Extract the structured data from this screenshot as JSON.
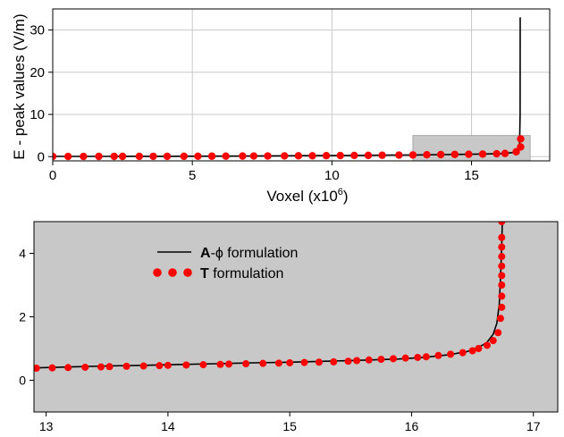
{
  "chart_data": [
    {
      "type": "line",
      "xlabel": "Voxel (x10",
      "xlabel_sup": "6",
      "xlabel_tail": ")",
      "ylabel": "E - peak values (V/m)",
      "xlim": [
        0,
        17.8
      ],
      "ylim": [
        -1,
        35
      ],
      "xticks": [
        "0",
        "5",
        "10",
        "15"
      ],
      "yticks": [
        "0",
        "10",
        "20",
        "30"
      ],
      "xtick_values": [
        0,
        5,
        10,
        15
      ],
      "ytick_values": [
        0,
        10,
        20,
        30
      ],
      "grid": true,
      "zoom_region": {
        "x": [
          12.9,
          17.1
        ],
        "y": [
          -1,
          5
        ]
      },
      "series": [
        {
          "name": "A-ϕ formulation",
          "style": "line",
          "color": "#000000",
          "x": [
            0,
            1,
            2,
            3,
            4,
            5,
            6,
            7,
            8,
            9,
            10,
            11,
            12,
            13,
            14,
            15,
            15.5,
            16,
            16.3,
            16.5,
            16.6,
            16.68,
            16.72,
            16.74,
            16.745
          ],
          "y": [
            0.05,
            0.05,
            0.06,
            0.07,
            0.08,
            0.1,
            0.12,
            0.15,
            0.18,
            0.22,
            0.26,
            0.3,
            0.35,
            0.4,
            0.48,
            0.56,
            0.62,
            0.72,
            0.85,
            1.0,
            1.2,
            1.6,
            3.0,
            10.0,
            33.0
          ]
        },
        {
          "name": "T formulation",
          "style": "markers",
          "color": "#ff0000",
          "x": [
            0,
            0.55,
            1.1,
            1.65,
            2.2,
            2.5,
            3.1,
            3.6,
            4.1,
            4.7,
            5.2,
            5.7,
            6.2,
            6.8,
            7.2,
            7.7,
            8.3,
            8.8,
            9.3,
            9.8,
            10.3,
            10.8,
            11.3,
            11.8,
            12.4,
            12.9,
            13.4,
            13.9,
            14.4,
            14.9,
            15.4,
            15.9,
            16.2,
            16.6,
            16.76,
            16.76
          ],
          "y": [
            0.05,
            0.05,
            0.05,
            0.06,
            0.06,
            0.06,
            0.07,
            0.08,
            0.08,
            0.09,
            0.1,
            0.11,
            0.12,
            0.14,
            0.15,
            0.16,
            0.18,
            0.2,
            0.21,
            0.23,
            0.26,
            0.28,
            0.3,
            0.33,
            0.36,
            0.4,
            0.44,
            0.48,
            0.53,
            0.56,
            0.6,
            0.68,
            0.75,
            1.15,
            2.3,
            4.2
          ]
        }
      ]
    },
    {
      "type": "line",
      "xlim": [
        12.9,
        17.2
      ],
      "ylim": [
        -1,
        5
      ],
      "xticks": [
        "13",
        "14",
        "15",
        "16",
        "17"
      ],
      "yticks": [
        "0",
        "2",
        "4"
      ],
      "xtick_values": [
        13,
        14,
        15,
        16,
        17
      ],
      "ytick_values": [
        0,
        2,
        4
      ],
      "background": "#c8c8c8",
      "legend_position": "top-left",
      "legend": [
        {
          "bold": "A",
          "text": "-ϕ formulation",
          "style": "line",
          "color": "#000000"
        },
        {
          "bold": "T",
          "text": " formulation",
          "style": "markers",
          "color": "#ff0000"
        }
      ],
      "series": [
        {
          "style": "line",
          "color": "#000000",
          "x": [
            12.9,
            13.2,
            13.5,
            13.8,
            14.1,
            14.4,
            14.7,
            15.0,
            15.3,
            15.6,
            15.9,
            16.1,
            16.3,
            16.45,
            16.55,
            16.62,
            16.67,
            16.7,
            16.72,
            16.73,
            16.74,
            16.745
          ],
          "y": [
            0.39,
            0.42,
            0.45,
            0.47,
            0.5,
            0.52,
            0.55,
            0.57,
            0.6,
            0.63,
            0.67,
            0.72,
            0.8,
            0.9,
            1.03,
            1.2,
            1.45,
            1.8,
            2.4,
            3.2,
            4.2,
            5.0
          ]
        },
        {
          "style": "markers",
          "color": "#ff0000",
          "x": [
            12.92,
            13.05,
            13.18,
            13.32,
            13.45,
            13.52,
            13.66,
            13.8,
            13.93,
            14.0,
            14.15,
            14.29,
            14.43,
            14.5,
            14.64,
            14.78,
            14.91,
            15.0,
            15.12,
            15.24,
            15.36,
            15.48,
            15.55,
            15.65,
            15.75,
            15.85,
            15.95,
            16.05,
            16.12,
            16.22,
            16.32,
            16.42,
            16.5,
            16.55,
            16.62,
            16.67,
            16.71,
            16.73,
            16.74,
            16.74,
            16.74,
            16.74,
            16.74,
            16.74,
            16.74,
            16.74,
            16.74
          ],
          "y": [
            0.38,
            0.39,
            0.4,
            0.41,
            0.42,
            0.43,
            0.44,
            0.45,
            0.46,
            0.47,
            0.48,
            0.49,
            0.5,
            0.51,
            0.52,
            0.53,
            0.54,
            0.55,
            0.56,
            0.57,
            0.58,
            0.6,
            0.62,
            0.64,
            0.66,
            0.68,
            0.7,
            0.72,
            0.74,
            0.78,
            0.82,
            0.87,
            0.93,
            1.0,
            1.1,
            1.25,
            1.5,
            1.95,
            2.3,
            2.65,
            3.0,
            3.3,
            3.6,
            3.9,
            4.2,
            4.5,
            5.0
          ]
        }
      ]
    }
  ]
}
